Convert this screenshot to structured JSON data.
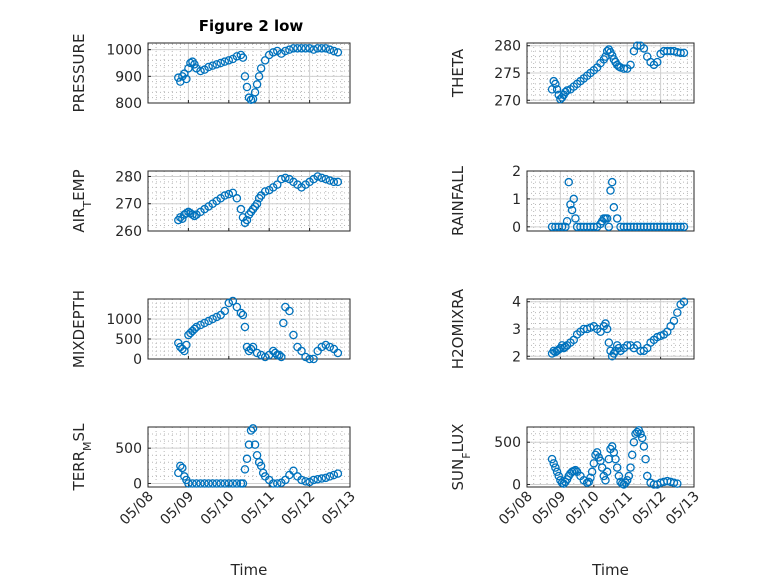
{
  "figure_title": "Figure 2 low",
  "colors": {
    "marker": "#0072BD",
    "axis": "#262626",
    "grid": "#d0d0d0"
  },
  "chart_data": [
    {
      "type": "scatter",
      "id": "pressure",
      "title": "Figure 2 low",
      "ylabel": "PRESSURE",
      "xlabel": "",
      "xlim": [
        "05/08",
        "05/13"
      ],
      "xticks": [
        "05/08",
        "05/09",
        "05/10",
        "05/11",
        "05/12",
        "05/13"
      ],
      "ylim": [
        800,
        1025
      ],
      "yticks": [
        800,
        900,
        1000
      ],
      "x": [
        8.75,
        8.8,
        8.85,
        8.9,
        8.95,
        9.0,
        9.05,
        9.1,
        9.15,
        9.2,
        9.3,
        9.4,
        9.5,
        9.6,
        9.7,
        9.8,
        9.9,
        10.0,
        10.1,
        10.2,
        10.3,
        10.35,
        10.4,
        10.45,
        10.5,
        10.55,
        10.6,
        10.65,
        10.7,
        10.75,
        10.8,
        10.9,
        11.0,
        11.1,
        11.2,
        11.3,
        11.4,
        11.5,
        11.6,
        11.7,
        11.8,
        11.9,
        12.0,
        12.1,
        12.2,
        12.3,
        12.4,
        12.5,
        12.6,
        12.7
      ],
      "y": [
        895,
        880,
        900,
        910,
        890,
        930,
        950,
        955,
        945,
        930,
        920,
        925,
        935,
        940,
        945,
        950,
        955,
        960,
        965,
        975,
        980,
        970,
        900,
        860,
        820,
        812,
        815,
        840,
        870,
        900,
        930,
        960,
        980,
        990,
        995,
        985,
        995,
        1000,
        1005,
        1005,
        1005,
        1005,
        1005,
        1000,
        1005,
        1005,
        1005,
        1000,
        995,
        990
      ]
    },
    {
      "type": "scatter",
      "id": "theta",
      "ylabel": "THETA",
      "xlabel": "",
      "xlim": [
        "05/08",
        "05/13"
      ],
      "xticks": [
        "05/08",
        "05/09",
        "05/10",
        "05/11",
        "05/12",
        "05/13"
      ],
      "ylim": [
        269.5,
        280.5
      ],
      "yticks": [
        270,
        275,
        280
      ],
      "x": [
        8.75,
        8.8,
        8.85,
        8.9,
        8.95,
        9.0,
        9.05,
        9.1,
        9.15,
        9.2,
        9.3,
        9.4,
        9.5,
        9.6,
        9.7,
        9.8,
        9.9,
        10.0,
        10.1,
        10.2,
        10.3,
        10.35,
        10.4,
        10.45,
        10.5,
        10.55,
        10.6,
        10.65,
        10.7,
        10.75,
        10.8,
        10.9,
        11.0,
        11.1,
        11.2,
        11.3,
        11.4,
        11.5,
        11.6,
        11.7,
        11.8,
        11.9,
        12.0,
        12.1,
        12.2,
        12.3,
        12.4,
        12.5,
        12.6,
        12.7
      ],
      "y": [
        272,
        273.5,
        273,
        272,
        271,
        270.2,
        270.5,
        271,
        271.5,
        271.8,
        272,
        272.5,
        273,
        273.5,
        274,
        274.5,
        275,
        275.5,
        276,
        276.8,
        277.5,
        278,
        279,
        279.3,
        278.8,
        278.2,
        277.5,
        277,
        276.5,
        276.2,
        276,
        275.8,
        275.8,
        276.5,
        279,
        280,
        280,
        279.5,
        278,
        277,
        276.5,
        277,
        278.5,
        279,
        279,
        279,
        279,
        278.8,
        278.7,
        278.7
      ]
    },
    {
      "type": "scatter",
      "id": "air_temp",
      "ylabel": "AIR_TEMP",
      "xlabel": "",
      "xlim": [
        "05/08",
        "05/13"
      ],
      "xticks": [
        "05/08",
        "05/09",
        "05/10",
        "05/11",
        "05/12",
        "05/13"
      ],
      "ylim": [
        260,
        282
      ],
      "yticks": [
        260,
        270,
        280
      ],
      "x": [
        8.75,
        8.8,
        8.85,
        8.9,
        8.95,
        9.0,
        9.05,
        9.1,
        9.15,
        9.2,
        9.3,
        9.4,
        9.5,
        9.6,
        9.7,
        9.8,
        9.9,
        10.0,
        10.1,
        10.2,
        10.3,
        10.35,
        10.4,
        10.45,
        10.5,
        10.55,
        10.6,
        10.65,
        10.7,
        10.75,
        10.8,
        10.9,
        11.0,
        11.1,
        11.2,
        11.3,
        11.4,
        11.5,
        11.6,
        11.7,
        11.8,
        11.9,
        12.0,
        12.1,
        12.2,
        12.3,
        12.4,
        12.5,
        12.6,
        12.7
      ],
      "y": [
        264,
        265,
        264.5,
        266,
        266.5,
        267,
        266.5,
        266,
        265.5,
        266,
        267,
        268,
        269,
        270,
        271,
        272,
        273,
        273.5,
        274,
        272,
        268,
        265,
        263,
        264,
        266,
        267,
        268,
        269,
        270,
        272,
        273,
        274.5,
        275,
        276,
        277,
        279,
        279.5,
        279,
        278,
        277,
        276,
        277,
        278,
        279,
        280,
        279.5,
        279,
        278.5,
        278,
        278
      ]
    },
    {
      "type": "scatter",
      "id": "rainfall",
      "ylabel": "RAINFALL",
      "xlabel": "",
      "xlim": [
        "05/08",
        "05/13"
      ],
      "xticks": [
        "05/08",
        "05/09",
        "05/10",
        "05/11",
        "05/12",
        "05/13"
      ],
      "ylim": [
        -0.15,
        2
      ],
      "yticks": [
        0,
        1,
        2
      ],
      "x": [
        8.75,
        8.85,
        8.95,
        9.05,
        9.15,
        9.2,
        9.25,
        9.3,
        9.35,
        9.4,
        9.45,
        9.5,
        9.6,
        9.7,
        9.8,
        9.9,
        10.0,
        10.1,
        10.2,
        10.25,
        10.3,
        10.35,
        10.4,
        10.45,
        10.5,
        10.55,
        10.6,
        10.7,
        10.8,
        10.9,
        11.0,
        11.1,
        11.2,
        11.3,
        11.4,
        11.5,
        11.6,
        11.7,
        11.8,
        11.9,
        12.0,
        12.1,
        12.2,
        12.3,
        12.4,
        12.5,
        12.6,
        12.7
      ],
      "y": [
        0,
        0,
        0,
        0,
        0,
        0.2,
        1.6,
        0.8,
        0.6,
        1.0,
        0.3,
        0,
        0,
        0,
        0,
        0,
        0,
        0,
        0.1,
        0.2,
        0.3,
        0.3,
        0.3,
        0,
        1.3,
        1.6,
        0.7,
        0.3,
        0,
        0,
        0,
        0,
        0,
        0,
        0,
        0,
        0,
        0,
        0,
        0,
        0,
        0,
        0,
        0,
        0,
        0,
        0,
        0
      ]
    },
    {
      "type": "scatter",
      "id": "mixdepth",
      "ylabel": "MIXDEPTH",
      "xlabel": "",
      "xlim": [
        "05/08",
        "05/13"
      ],
      "xticks": [
        "05/08",
        "05/09",
        "05/10",
        "05/11",
        "05/12",
        "05/13"
      ],
      "ylim": [
        0,
        1500
      ],
      "yticks": [
        0,
        500,
        1000
      ],
      "x": [
        8.75,
        8.8,
        8.85,
        8.9,
        8.95,
        9.0,
        9.05,
        9.1,
        9.15,
        9.2,
        9.3,
        9.4,
        9.5,
        9.6,
        9.7,
        9.8,
        9.9,
        10.0,
        10.1,
        10.2,
        10.3,
        10.35,
        10.4,
        10.45,
        10.5,
        10.55,
        10.6,
        10.7,
        10.8,
        10.9,
        11.0,
        11.1,
        11.15,
        11.2,
        11.25,
        11.3,
        11.35,
        11.4,
        11.5,
        11.6,
        11.7,
        11.8,
        11.9,
        12.0,
        12.1,
        12.2,
        12.3,
        12.4,
        12.5,
        12.6,
        12.7
      ],
      "y": [
        400,
        300,
        250,
        200,
        350,
        600,
        650,
        700,
        750,
        800,
        850,
        900,
        950,
        1000,
        1050,
        1100,
        1200,
        1400,
        1450,
        1300,
        1150,
        1100,
        800,
        300,
        200,
        250,
        300,
        150,
        100,
        50,
        100,
        200,
        150,
        100,
        100,
        50,
        900,
        1300,
        1200,
        600,
        300,
        200,
        50,
        0,
        0,
        200,
        300,
        350,
        300,
        250,
        150
      ]
    },
    {
      "type": "scatter",
      "id": "h2omixra",
      "ylabel": "H2OMIXRA",
      "xlabel": "",
      "xlim": [
        "05/08",
        "05/13"
      ],
      "xticks": [
        "05/08",
        "05/09",
        "05/10",
        "05/11",
        "05/12",
        "05/13"
      ],
      "ylim": [
        1.9,
        4.1
      ],
      "yticks": [
        2,
        3,
        4
      ],
      "x": [
        8.75,
        8.8,
        8.85,
        8.9,
        8.95,
        9.0,
        9.05,
        9.1,
        9.15,
        9.2,
        9.3,
        9.4,
        9.5,
        9.6,
        9.7,
        9.8,
        9.9,
        10.0,
        10.1,
        10.2,
        10.3,
        10.35,
        10.4,
        10.45,
        10.5,
        10.55,
        10.6,
        10.65,
        10.7,
        10.75,
        10.8,
        10.9,
        11.0,
        11.1,
        11.2,
        11.3,
        11.4,
        11.5,
        11.6,
        11.7,
        11.8,
        11.9,
        12.0,
        12.1,
        12.2,
        12.3,
        12.4,
        12.5,
        12.6,
        12.7
      ],
      "y": [
        2.1,
        2.2,
        2.15,
        2.2,
        2.25,
        2.3,
        2.4,
        2.3,
        2.35,
        2.4,
        2.5,
        2.6,
        2.8,
        2.9,
        3.0,
        3.0,
        3.05,
        3.1,
        3.0,
        2.9,
        3.1,
        3.2,
        3.0,
        2.5,
        2.2,
        2.0,
        2.1,
        2.2,
        2.4,
        2.3,
        2.2,
        2.3,
        2.4,
        2.4,
        2.3,
        2.4,
        2.2,
        2.2,
        2.3,
        2.5,
        2.6,
        2.7,
        2.75,
        2.8,
        2.9,
        3.1,
        3.3,
        3.6,
        3.9,
        4.0
      ]
    },
    {
      "type": "scatter",
      "id": "terr_msl",
      "ylabel": "TERR_MSL",
      "xlabel": "Time",
      "xlim": [
        "05/08",
        "05/13"
      ],
      "xticks": [
        "05/08",
        "05/09",
        "05/10",
        "05/11",
        "05/12",
        "05/13"
      ],
      "ylim": [
        -50,
        800
      ],
      "yticks": [
        0,
        500
      ],
      "x": [
        8.75,
        8.8,
        8.85,
        8.9,
        8.95,
        9.0,
        9.1,
        9.2,
        9.3,
        9.4,
        9.5,
        9.6,
        9.7,
        9.8,
        9.9,
        10.0,
        10.1,
        10.2,
        10.3,
        10.35,
        10.4,
        10.45,
        10.5,
        10.55,
        10.6,
        10.65,
        10.7,
        10.75,
        10.8,
        10.85,
        10.9,
        11.0,
        11.1,
        11.2,
        11.3,
        11.4,
        11.5,
        11.6,
        11.7,
        11.8,
        11.9,
        12.0,
        12.1,
        12.2,
        12.3,
        12.4,
        12.5,
        12.6,
        12.7
      ],
      "y": [
        150,
        250,
        220,
        100,
        50,
        0,
        0,
        0,
        0,
        0,
        0,
        0,
        0,
        0,
        0,
        0,
        0,
        0,
        0,
        0,
        200,
        350,
        550,
        750,
        780,
        550,
        400,
        300,
        250,
        150,
        100,
        50,
        0,
        0,
        10,
        50,
        120,
        180,
        100,
        50,
        30,
        20,
        50,
        60,
        70,
        80,
        100,
        120,
        140
      ]
    },
    {
      "type": "scatter",
      "id": "sun_flux",
      "ylabel": "SUN_FLUX",
      "xlabel": "Time",
      "xlim": [
        "05/08",
        "05/13"
      ],
      "xticks": [
        "05/08",
        "05/09",
        "05/10",
        "05/11",
        "05/12",
        "05/13"
      ],
      "ylim": [
        -30,
        680
      ],
      "yticks": [
        0,
        500
      ],
      "x": [
        8.75,
        8.8,
        8.85,
        8.9,
        8.95,
        9.0,
        9.05,
        9.1,
        9.15,
        9.2,
        9.25,
        9.3,
        9.35,
        9.4,
        9.45,
        9.5,
        9.6,
        9.7,
        9.8,
        9.85,
        9.9,
        9.95,
        10.0,
        10.05,
        10.1,
        10.15,
        10.2,
        10.25,
        10.3,
        10.35,
        10.4,
        10.45,
        10.5,
        10.55,
        10.6,
        10.65,
        10.7,
        10.75,
        10.8,
        10.85,
        10.9,
        10.95,
        11.0,
        11.05,
        11.1,
        11.15,
        11.2,
        11.25,
        11.3,
        11.35,
        11.4,
        11.45,
        11.5,
        11.55,
        11.6,
        11.7,
        11.8,
        11.9,
        12.0,
        12.1,
        12.2,
        12.3,
        12.4,
        12.5
      ],
      "y": [
        300,
        250,
        200,
        150,
        100,
        50,
        20,
        10,
        30,
        60,
        100,
        130,
        150,
        160,
        170,
        150,
        100,
        50,
        20,
        30,
        80,
        150,
        250,
        350,
        380,
        320,
        280,
        200,
        100,
        50,
        150,
        300,
        420,
        450,
        380,
        300,
        200,
        100,
        30,
        10,
        0,
        20,
        50,
        100,
        200,
        350,
        500,
        600,
        620,
        640,
        600,
        550,
        450,
        300,
        100,
        20,
        0,
        0,
        20,
        30,
        40,
        30,
        20,
        10
      ]
    }
  ]
}
